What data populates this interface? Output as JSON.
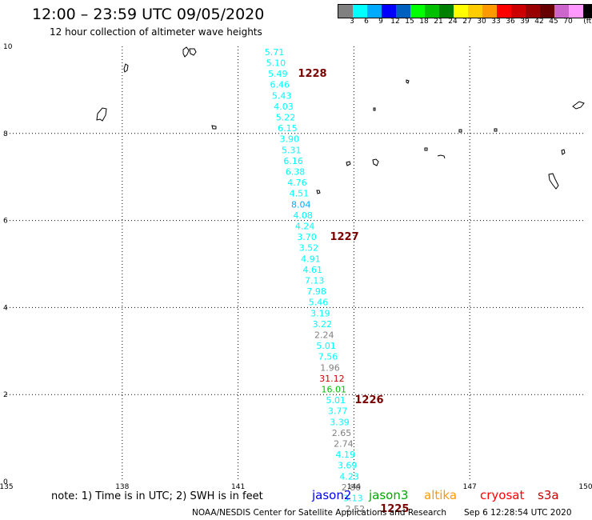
{
  "header": {
    "title": "12:00 – 23:59 UTC 09/05/2020",
    "subtitle": "12 hour collection of altimeter wave heights"
  },
  "legend": {
    "colors": [
      "#808080",
      "#00ffff",
      "#00aaff",
      "#0000ff",
      "#0060c0",
      "#00ff00",
      "#00c000",
      "#008000",
      "#ffff00",
      "#ffcc00",
      "#ff9900",
      "#ff0000",
      "#cc0000",
      "#990000",
      "#660000",
      "#cc66cc",
      "#ff99ff",
      "#000000"
    ],
    "labels": [
      "3",
      "6",
      "9",
      "12",
      "15",
      "18",
      "21",
      "24",
      "27",
      "30",
      "33",
      "36",
      "39",
      "42",
      "45",
      "70"
    ],
    "unit": "(ft)"
  },
  "axes": {
    "y_ticks": [
      {
        "label": "10",
        "v": 10
      },
      {
        "label": "8",
        "v": 8
      },
      {
        "label": "6",
        "v": 6
      },
      {
        "label": "4",
        "v": 4
      },
      {
        "label": "2",
        "v": 2
      },
      {
        "label": "0",
        "v": 0
      }
    ],
    "x_ticks": [
      {
        "label": "135",
        "v": 135
      },
      {
        "label": "138",
        "v": 138
      },
      {
        "label": "141",
        "v": 141
      },
      {
        "label": "144",
        "v": 144
      },
      {
        "label": "147",
        "v": 147
      },
      {
        "label": "150",
        "v": 150
      }
    ]
  },
  "track": {
    "observations": [
      {
        "value": "5.71",
        "color": "#00ffff",
        "lon": 141.94,
        "lat": 9.8
      },
      {
        "value": "5.10",
        "color": "#00ffff",
        "lon": 141.98,
        "lat": 9.55
      },
      {
        "value": "5.49",
        "color": "#00ffff",
        "lon": 142.03,
        "lat": 9.3
      },
      {
        "value": "6.46",
        "color": "#00ffff",
        "lon": 142.08,
        "lat": 9.05
      },
      {
        "value": "5.43",
        "color": "#00ffff",
        "lon": 142.13,
        "lat": 8.8
      },
      {
        "value": "4.03",
        "color": "#00ffff",
        "lon": 142.18,
        "lat": 8.55
      },
      {
        "value": "5.22",
        "color": "#00ffff",
        "lon": 142.23,
        "lat": 8.3
      },
      {
        "value": "6.15",
        "color": "#00ffff",
        "lon": 142.28,
        "lat": 8.05
      },
      {
        "value": "3.90",
        "color": "#00ffff",
        "lon": 142.33,
        "lat": 7.8
      },
      {
        "value": "5.31",
        "color": "#00ffff",
        "lon": 142.38,
        "lat": 7.55
      },
      {
        "value": "6.16",
        "color": "#00ffff",
        "lon": 142.43,
        "lat": 7.3
      },
      {
        "value": "6.38",
        "color": "#00ffff",
        "lon": 142.48,
        "lat": 7.05
      },
      {
        "value": "4.76",
        "color": "#00ffff",
        "lon": 142.53,
        "lat": 6.8
      },
      {
        "value": "4.51",
        "color": "#00ffff",
        "lon": 142.58,
        "lat": 6.55
      },
      {
        "value": "8.04",
        "color": "#00aaff",
        "lon": 142.63,
        "lat": 6.3
      },
      {
        "value": "4.08",
        "color": "#00ffff",
        "lon": 142.68,
        "lat": 6.05
      },
      {
        "value": "4.24",
        "color": "#00ffff",
        "lon": 142.73,
        "lat": 5.8
      },
      {
        "value": "3.70",
        "color": "#00ffff",
        "lon": 142.78,
        "lat": 5.55
      },
      {
        "value": "3.52",
        "color": "#00ffff",
        "lon": 142.83,
        "lat": 5.3
      },
      {
        "value": "4.91",
        "color": "#00ffff",
        "lon": 142.88,
        "lat": 5.05
      },
      {
        "value": "4.61",
        "color": "#00ffff",
        "lon": 142.93,
        "lat": 4.8
      },
      {
        "value": "7.13",
        "color": "#00ffff",
        "lon": 142.98,
        "lat": 4.55
      },
      {
        "value": "7.98",
        "color": "#00ffff",
        "lon": 143.03,
        "lat": 4.3
      },
      {
        "value": "5.46",
        "color": "#00ffff",
        "lon": 143.08,
        "lat": 4.05
      },
      {
        "value": "3.19",
        "color": "#00ffff",
        "lon": 143.13,
        "lat": 3.8
      },
      {
        "value": "3.22",
        "color": "#00ffff",
        "lon": 143.18,
        "lat": 3.55
      },
      {
        "value": "2.24",
        "color": "#808080",
        "lon": 143.23,
        "lat": 3.3
      },
      {
        "value": "5.01",
        "color": "#00ffff",
        "lon": 143.28,
        "lat": 3.05
      },
      {
        "value": "7.56",
        "color": "#00ffff",
        "lon": 143.33,
        "lat": 2.8
      },
      {
        "value": "1.96",
        "color": "#808080",
        "lon": 143.38,
        "lat": 2.55
      },
      {
        "value": "31.12",
        "color": "#cc0000",
        "lon": 143.43,
        "lat": 2.3
      },
      {
        "value": "16.01",
        "color": "#00c000",
        "lon": 143.48,
        "lat": 2.05
      },
      {
        "value": "5.01",
        "color": "#00ffff",
        "lon": 143.53,
        "lat": 1.8
      },
      {
        "value": "3.77",
        "color": "#00ffff",
        "lon": 143.58,
        "lat": 1.55
      },
      {
        "value": "3.39",
        "color": "#00ffff",
        "lon": 143.63,
        "lat": 1.3
      },
      {
        "value": "2.65",
        "color": "#808080",
        "lon": 143.68,
        "lat": 1.05
      },
      {
        "value": "2.74",
        "color": "#808080",
        "lon": 143.73,
        "lat": 0.8
      },
      {
        "value": "4.19",
        "color": "#00ffff",
        "lon": 143.78,
        "lat": 0.55
      },
      {
        "value": "3.69",
        "color": "#00ffff",
        "lon": 143.83,
        "lat": 0.3
      },
      {
        "value": "4.23",
        "color": "#00ffff",
        "lon": 143.88,
        "lat": 0.05
      },
      {
        "value": "2.80",
        "color": "#808080",
        "lon": 143.93,
        "lat": -0.2
      },
      {
        "value": "3.13",
        "color": "#00ffff",
        "lon": 143.98,
        "lat": -0.45
      },
      {
        "value": "2.52",
        "color": "#808080",
        "lon": 144.03,
        "lat": -0.7
      }
    ],
    "pass_times": [
      {
        "label": "1228",
        "lon": 142.55,
        "lat": 9.3
      },
      {
        "label": "1227",
        "lon": 143.38,
        "lat": 5.55
      },
      {
        "label": "1226",
        "lon": 144.02,
        "lat": 1.8
      },
      {
        "label": "1225",
        "lon": 144.68,
        "lat": -0.7
      }
    ]
  },
  "footer": {
    "note": "note:  1) Time is in UTC; 2) SWH is in feet",
    "satellites": [
      {
        "name": "jason2",
        "color": "#0000ff"
      },
      {
        "name": "jason3",
        "color": "#00aa00"
      },
      {
        "name": "altika",
        "color": "#ff9900"
      },
      {
        "name": "cryosat",
        "color": "#ff0000"
      },
      {
        "name": "s3a",
        "color": "#cc0000"
      }
    ],
    "credit": "NOAA/NESDIS Center for Satellite Applications and Research",
    "timestamp": "Sep  6 12:28:54 UTC 2020"
  }
}
